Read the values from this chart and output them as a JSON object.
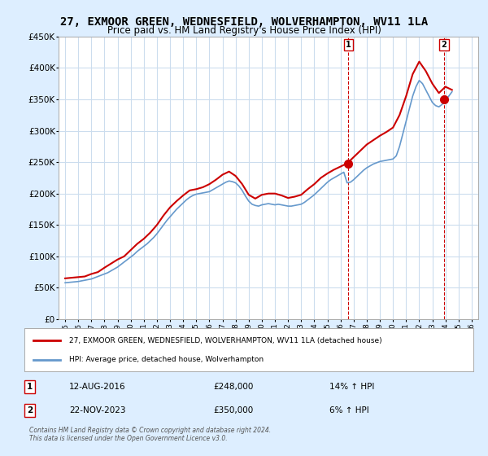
{
  "title": "27, EXMOOR GREEN, WEDNESFIELD, WOLVERHAMPTON, WV11 1LA",
  "subtitle": "Price paid vs. HM Land Registry's House Price Index (HPI)",
  "legend_line1": "27, EXMOOR GREEN, WEDNESFIELD, WOLVERHAMPTON, WV11 1LA (detached house)",
  "legend_line2": "HPI: Average price, detached house, Wolverhampton",
  "transaction1_label": "1",
  "transaction1_date": "12-AUG-2016",
  "transaction1_price": "£248,000",
  "transaction1_hpi": "14% ↑ HPI",
  "transaction1_year": 2016.6,
  "transaction1_value": 248000,
  "transaction2_label": "2",
  "transaction2_date": "22-NOV-2023",
  "transaction2_price": "£350,000",
  "transaction2_hpi": "6% ↑ HPI",
  "transaction2_year": 2023.9,
  "transaction2_value": 350000,
  "hpi_color": "#6699cc",
  "price_color": "#cc0000",
  "vline_color": "#cc0000",
  "grid_color": "#ccddee",
  "background_color": "#ddeeff",
  "plot_bg_color": "#ffffff",
  "ylim": [
    0,
    450000
  ],
  "yticks": [
    0,
    50000,
    100000,
    150000,
    200000,
    250000,
    300000,
    350000,
    400000,
    450000
  ],
  "xlim": [
    1994.5,
    2026.5
  ],
  "xticks": [
    1995,
    1996,
    1997,
    1998,
    1999,
    2000,
    2001,
    2002,
    2003,
    2004,
    2005,
    2006,
    2007,
    2008,
    2009,
    2010,
    2011,
    2012,
    2013,
    2014,
    2015,
    2016,
    2017,
    2018,
    2019,
    2020,
    2021,
    2022,
    2023,
    2024,
    2025,
    2026
  ],
  "footer": "Contains HM Land Registry data © Crown copyright and database right 2024.\nThis data is licensed under the Open Government Licence v3.0.",
  "hpi_data_x": [
    1995.0,
    1995.25,
    1995.5,
    1995.75,
    1996.0,
    1996.25,
    1996.5,
    1996.75,
    1997.0,
    1997.25,
    1997.5,
    1997.75,
    1998.0,
    1998.25,
    1998.5,
    1998.75,
    1999.0,
    1999.25,
    1999.5,
    1999.75,
    2000.0,
    2000.25,
    2000.5,
    2000.75,
    2001.0,
    2001.25,
    2001.5,
    2001.75,
    2002.0,
    2002.25,
    2002.5,
    2002.75,
    2003.0,
    2003.25,
    2003.5,
    2003.75,
    2004.0,
    2004.25,
    2004.5,
    2004.75,
    2005.0,
    2005.25,
    2005.5,
    2005.75,
    2006.0,
    2006.25,
    2006.5,
    2006.75,
    2007.0,
    2007.25,
    2007.5,
    2007.75,
    2008.0,
    2008.25,
    2008.5,
    2008.75,
    2009.0,
    2009.25,
    2009.5,
    2009.75,
    2010.0,
    2010.25,
    2010.5,
    2010.75,
    2011.0,
    2011.25,
    2011.5,
    2011.75,
    2012.0,
    2012.25,
    2012.5,
    2012.75,
    2013.0,
    2013.25,
    2013.5,
    2013.75,
    2014.0,
    2014.25,
    2014.5,
    2014.75,
    2015.0,
    2015.25,
    2015.5,
    2015.75,
    2016.0,
    2016.25,
    2016.5,
    2016.75,
    2017.0,
    2017.25,
    2017.5,
    2017.75,
    2018.0,
    2018.25,
    2018.5,
    2018.75,
    2019.0,
    2019.25,
    2019.5,
    2019.75,
    2020.0,
    2020.25,
    2020.5,
    2020.75,
    2021.0,
    2021.25,
    2021.5,
    2021.75,
    2022.0,
    2022.25,
    2022.5,
    2022.75,
    2023.0,
    2023.25,
    2023.5,
    2023.75,
    2024.0,
    2024.25,
    2024.5
  ],
  "hpi_data_y": [
    58000,
    58500,
    59000,
    59500,
    60000,
    61000,
    62000,
    63000,
    64000,
    66000,
    68000,
    70000,
    72000,
    74000,
    77000,
    80000,
    83000,
    87000,
    91000,
    95000,
    99000,
    103000,
    108000,
    112000,
    116000,
    120000,
    125000,
    130000,
    136000,
    143000,
    150000,
    157000,
    163000,
    169000,
    175000,
    180000,
    185000,
    190000,
    194000,
    197000,
    199000,
    200000,
    201000,
    202000,
    203000,
    206000,
    209000,
    212000,
    215000,
    218000,
    220000,
    219000,
    217000,
    212000,
    205000,
    196000,
    188000,
    183000,
    181000,
    180000,
    182000,
    183000,
    184000,
    183000,
    182000,
    183000,
    182000,
    181000,
    180000,
    180000,
    181000,
    182000,
    183000,
    186000,
    190000,
    194000,
    198000,
    203000,
    208000,
    213000,
    218000,
    222000,
    225000,
    228000,
    231000,
    234000,
    217000,
    218000,
    222000,
    227000,
    232000,
    237000,
    241000,
    244000,
    247000,
    249000,
    251000,
    252000,
    253000,
    254000,
    255000,
    260000,
    275000,
    295000,
    315000,
    335000,
    355000,
    370000,
    380000,
    375000,
    365000,
    355000,
    345000,
    340000,
    338000,
    342000,
    348000,
    355000,
    362000
  ],
  "price_data_x": [
    1995.0,
    1995.5,
    1996.0,
    1996.5,
    1997.0,
    1997.5,
    1998.0,
    1999.0,
    1999.5,
    2000.0,
    2000.5,
    2001.0,
    2001.5,
    2002.0,
    2002.5,
    2003.0,
    2003.5,
    2004.0,
    2004.5,
    2005.0,
    2005.5,
    2006.0,
    2006.5,
    2007.0,
    2007.5,
    2008.0,
    2008.5,
    2009.0,
    2009.5,
    2010.0,
    2010.5,
    2011.0,
    2011.5,
    2012.0,
    2012.5,
    2013.0,
    2013.5,
    2014.0,
    2014.5,
    2015.0,
    2015.5,
    2016.0,
    2016.5,
    2017.0,
    2017.5,
    2018.0,
    2018.5,
    2019.0,
    2019.5,
    2020.0,
    2020.5,
    2021.0,
    2021.5,
    2022.0,
    2022.5,
    2023.0,
    2023.5,
    2024.0,
    2024.5
  ],
  "price_data_y": [
    65000,
    66000,
    67000,
    68000,
    72000,
    75000,
    82000,
    95000,
    100000,
    110000,
    120000,
    128000,
    138000,
    150000,
    165000,
    178000,
    188000,
    197000,
    205000,
    207000,
    210000,
    215000,
    222000,
    230000,
    235000,
    228000,
    215000,
    198000,
    192000,
    198000,
    200000,
    200000,
    197000,
    193000,
    195000,
    198000,
    207000,
    215000,
    225000,
    232000,
    238000,
    243000,
    248000,
    258000,
    268000,
    278000,
    285000,
    292000,
    298000,
    305000,
    325000,
    355000,
    390000,
    410000,
    395000,
    375000,
    360000,
    370000,
    365000
  ]
}
